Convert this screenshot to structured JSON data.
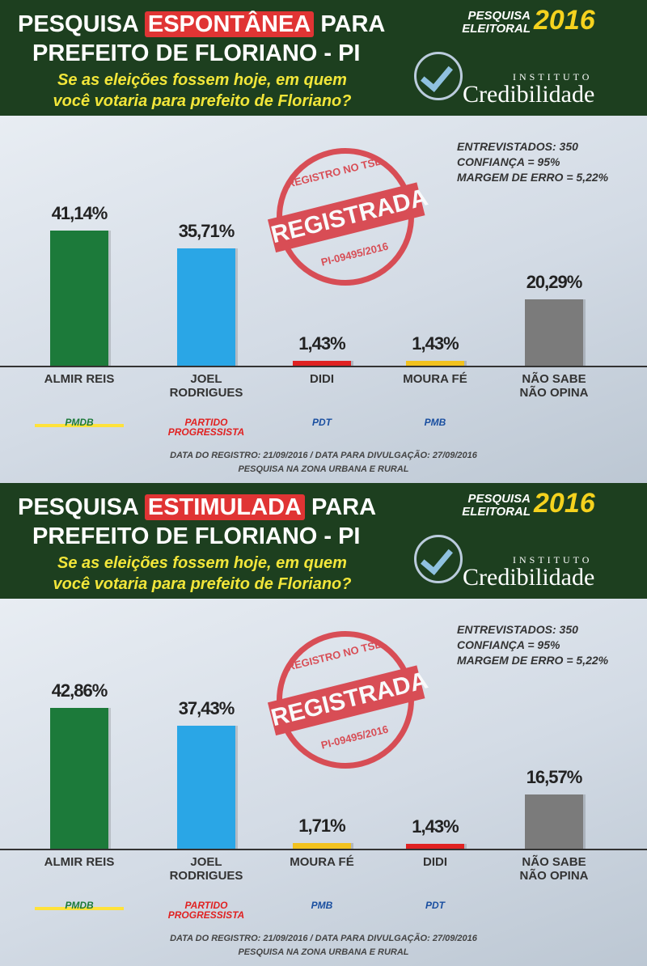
{
  "chart_data": [
    {
      "type": "bar",
      "title_prefix": "PESQUISA",
      "title_highlight": "ESPONTÂNEA",
      "title_suffix": "PARA",
      "title_line2": "PREFEITO DE FLORIANO - PI",
      "subtitle_lines": [
        "Se as eleições fossem hoje, em quem",
        "você votaria para prefeito de Floriano?"
      ],
      "badge_lines": [
        "PESQUISA",
        "ELEITORAL"
      ],
      "badge_year": "2016",
      "institute_small": "INSTITUTO",
      "institute": "Credibilidade",
      "stamp_top": "REGISTRO NO TSE",
      "stamp": "REGISTRADA",
      "stamp_bottom": "PI-09495/2016",
      "stats": [
        "ENTREVISTADOS: 350",
        "CONFIANÇA = 95%",
        "MARGEM DE ERRO = 5,22%"
      ],
      "categories": [
        "ALMIR REIS",
        "JOEL RODRIGUES",
        "DIDI",
        "MOURA FÉ",
        "NÃO SABE NÃO OPINA"
      ],
      "values": [
        41.14,
        35.71,
        1.43,
        1.43,
        20.29
      ],
      "value_labels": [
        "41,14%",
        "35,71%",
        "1,43%",
        "1,43%",
        "20,29%"
      ],
      "colors": [
        "#1c7a3a",
        "#2aa6e6",
        "#e02222",
        "#f2c21e",
        "#7b7b7b"
      ],
      "logos": [
        "PMDB",
        "PARTIDO PROGRESSISTA",
        "PDT",
        "PMB"
      ],
      "footer": [
        "DATA DO REGISTRO: 21/09/2016 / DATA PARA DIVULGAÇÃO: 27/09/2016",
        "PESQUISA NA ZONA URBANA E RURAL"
      ]
    },
    {
      "type": "bar",
      "title_prefix": "PESQUISA",
      "title_highlight": "ESTIMULADA",
      "title_suffix": "PARA",
      "title_line2": "PREFEITO DE FLORIANO - PI",
      "subtitle_lines": [
        "Se as eleições fossem hoje, em quem",
        "você votaria para prefeito de Floriano?"
      ],
      "badge_lines": [
        "PESQUISA",
        "ELEITORAL"
      ],
      "badge_year": "2016",
      "institute_small": "INSTITUTO",
      "institute": "Credibilidade",
      "stamp_top": "REGISTRO NO TSE",
      "stamp": "REGISTRADA",
      "stamp_bottom": "PI-09495/2016",
      "stats": [
        "ENTREVISTADOS: 350",
        "CONFIANÇA = 95%",
        "MARGEM DE ERRO = 5,22%"
      ],
      "categories": [
        "ALMIR REIS",
        "JOEL RODRIGUES",
        "MOURA FÉ",
        "DIDI",
        "NÃO SABE NÃO OPINA"
      ],
      "values": [
        42.86,
        37.43,
        1.71,
        1.43,
        16.57
      ],
      "value_labels": [
        "42,86%",
        "37,43%",
        "1,71%",
        "1,43%",
        "16,57%"
      ],
      "colors": [
        "#1c7a3a",
        "#2aa6e6",
        "#f2c21e",
        "#e02222",
        "#7b7b7b"
      ],
      "logos": [
        "PMDB",
        "PARTIDO PROGRESSISTA",
        "PMB",
        "PDT"
      ],
      "footer": [
        "DATA DO REGISTRO: 21/09/2016 / DATA PARA DIVULGAÇÃO: 27/09/2016",
        "PESQUISA NA ZONA URBANA E RURAL"
      ]
    }
  ]
}
